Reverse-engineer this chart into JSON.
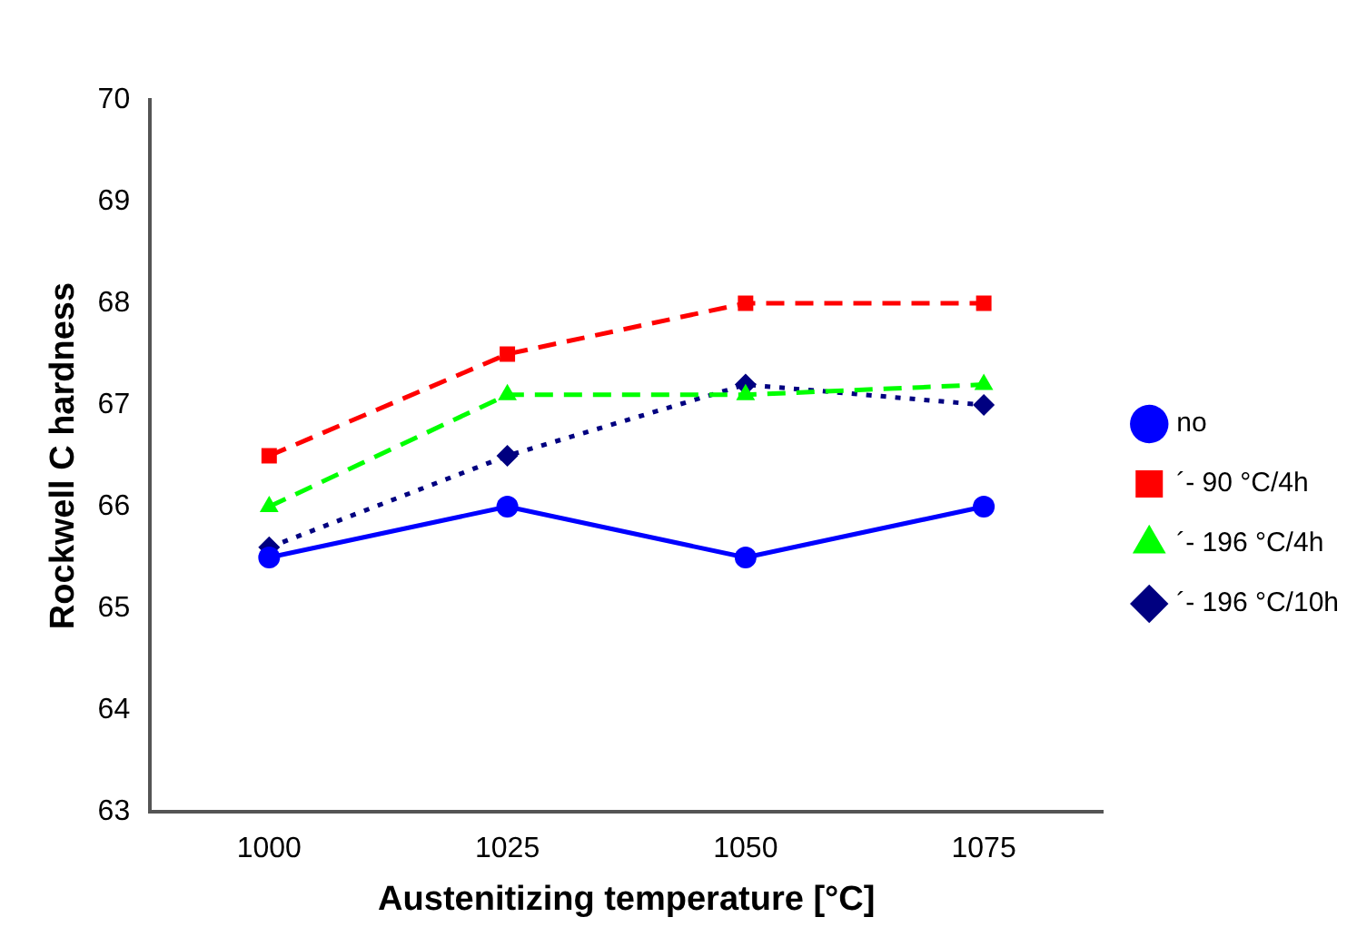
{
  "chart_data": {
    "type": "line",
    "xlabel": "Austenitizing temperature [°C]",
    "ylabel": "Rockwell C hardness",
    "categories": [
      "1000",
      "1025",
      "1050",
      "1075"
    ],
    "ylim": [
      63,
      70
    ],
    "yticks": [
      63,
      64,
      65,
      66,
      67,
      68,
      69,
      70
    ],
    "grid": false,
    "legend": "right",
    "series": [
      {
        "name": "no",
        "color": "#0000ff",
        "values": [
          65.5,
          66,
          65.5,
          66
        ],
        "marker": "circle",
        "line_style": "solid"
      },
      {
        "name": "´- 90 °C/4h",
        "color": "#ff0000",
        "values": [
          66.5,
          67.5,
          68,
          68
        ],
        "marker": "square",
        "line_style": "dashed"
      },
      {
        "name": "´- 196 °C/4h",
        "color": "#00ff00",
        "values": [
          66,
          67.1,
          67.1,
          67.2
        ],
        "marker": "triangle",
        "line_style": "dashed"
      },
      {
        "name": "´- 196 °C/10h",
        "color": "#000080",
        "values": [
          65.6,
          66.5,
          67.2,
          67
        ],
        "marker": "diamond",
        "line_style": "dotted"
      }
    ]
  }
}
